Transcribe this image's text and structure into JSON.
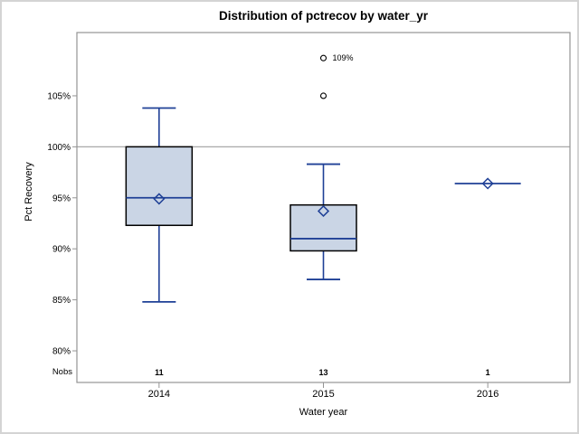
{
  "chart_data": {
    "type": "box",
    "title": "Distribution of pctrecov by water_yr",
    "xlabel": "Water year",
    "ylabel": "Pct Recovery",
    "ylim": [
      76.9,
      111.2
    ],
    "yticks": [
      {
        "value": 80,
        "label": "80%"
      },
      {
        "value": 85,
        "label": "85%"
      },
      {
        "value": 90,
        "label": "90%"
      },
      {
        "value": 95,
        "label": "95%"
      },
      {
        "value": 100,
        "label": "100%"
      },
      {
        "value": 105,
        "label": "105%"
      }
    ],
    "reference_line": 100,
    "grid": "off",
    "legend": "none",
    "nobs_row_label": "Nobs",
    "categories": [
      "2014",
      "2015",
      "2016"
    ],
    "boxes": [
      {
        "category": "2014",
        "nobs": "11",
        "whisker_low": 84.8,
        "q1": 92.3,
        "median": 95.0,
        "q3": 100.0,
        "whisker_high": 103.8,
        "mean": 94.9,
        "outliers": []
      },
      {
        "category": "2015",
        "nobs": "13",
        "whisker_low": 87.0,
        "q1": 89.8,
        "median": 91.0,
        "q3": 94.3,
        "whisker_high": 98.3,
        "mean": 93.7,
        "outliers": [
          {
            "value": 105.0,
            "label": ""
          },
          {
            "value": 108.7,
            "label": "109%"
          }
        ]
      },
      {
        "category": "2016",
        "nobs": "1",
        "whisker_low": null,
        "q1": null,
        "median": 96.4,
        "q3": null,
        "whisker_high": null,
        "mean": 96.4,
        "outliers": []
      }
    ],
    "colors": {
      "box_fill": "#cad5e5",
      "box_border": "#000000",
      "line": "#1f4096",
      "outlier_marker": "#000000",
      "axis_frame": "#949494",
      "reference_line": "#a9a9a9",
      "text": "#000000"
    }
  }
}
